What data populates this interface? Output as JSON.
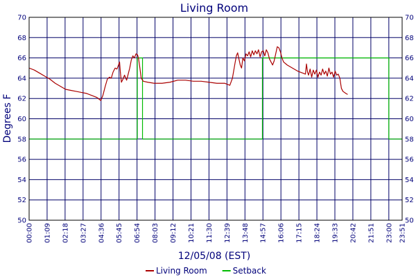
{
  "chart_data": {
    "type": "line",
    "title": "Living Room",
    "xlabel": "12/05/08 (EST)",
    "ylabel": "Degrees F",
    "ylim": [
      50,
      70
    ],
    "yticks": [
      50,
      52,
      54,
      56,
      58,
      60,
      62,
      64,
      66,
      68,
      70
    ],
    "right_axis": true,
    "grid": true,
    "legend_position": "bottom",
    "x_tick_labels": [
      "00:00",
      "01:09",
      "02:18",
      "03:27",
      "04:36",
      "05:45",
      "06:54",
      "08:03",
      "09:12",
      "10:21",
      "11:30",
      "12:39",
      "13:48",
      "14:57",
      "16:06",
      "17:15",
      "18:24",
      "19:33",
      "20:42",
      "21:51",
      "23:00",
      "23:51"
    ],
    "x_tick_minutes": [
      0,
      69,
      138,
      207,
      276,
      345,
      414,
      483,
      552,
      621,
      690,
      759,
      828,
      897,
      966,
      1035,
      1104,
      1173,
      1242,
      1311,
      1380,
      1431
    ],
    "xlim_minutes": [
      0,
      1431
    ],
    "series": [
      {
        "name": "Living Room",
        "color": "#aa0000",
        "points": [
          [
            0,
            65.0
          ],
          [
            20,
            64.8
          ],
          [
            40,
            64.5
          ],
          [
            60,
            64.2
          ],
          [
            80,
            63.9
          ],
          [
            100,
            63.5
          ],
          [
            120,
            63.2
          ],
          [
            140,
            62.9
          ],
          [
            160,
            62.8
          ],
          [
            180,
            62.7
          ],
          [
            200,
            62.6
          ],
          [
            220,
            62.5
          ],
          [
            240,
            62.3
          ],
          [
            260,
            62.1
          ],
          [
            275,
            61.8
          ],
          [
            283,
            62.3
          ],
          [
            292,
            63.2
          ],
          [
            300,
            63.9
          ],
          [
            308,
            64.1
          ],
          [
            315,
            64.0
          ],
          [
            322,
            64.6
          ],
          [
            330,
            65.0
          ],
          [
            337,
            64.9
          ],
          [
            343,
            65.3
          ],
          [
            347,
            65.6
          ],
          [
            350,
            64.6
          ],
          [
            354,
            63.6
          ],
          [
            360,
            63.9
          ],
          [
            366,
            64.3
          ],
          [
            374,
            63.8
          ],
          [
            380,
            64.4
          ],
          [
            386,
            65.0
          ],
          [
            392,
            65.8
          ],
          [
            398,
            66.2
          ],
          [
            404,
            66.0
          ],
          [
            410,
            66.4
          ],
          [
            416,
            66.3
          ],
          [
            420,
            65.9
          ],
          [
            425,
            65.0
          ],
          [
            430,
            64.0
          ],
          [
            438,
            63.7
          ],
          [
            455,
            63.6
          ],
          [
            480,
            63.5
          ],
          [
            510,
            63.5
          ],
          [
            540,
            63.6
          ],
          [
            570,
            63.8
          ],
          [
            600,
            63.8
          ],
          [
            630,
            63.7
          ],
          [
            660,
            63.7
          ],
          [
            690,
            63.6
          ],
          [
            720,
            63.5
          ],
          [
            750,
            63.5
          ],
          [
            770,
            63.3
          ],
          [
            780,
            64.0
          ],
          [
            786,
            64.9
          ],
          [
            790,
            65.5
          ],
          [
            795,
            66.2
          ],
          [
            800,
            66.5
          ],
          [
            804,
            66.0
          ],
          [
            810,
            65.3
          ],
          [
            815,
            65.0
          ],
          [
            820,
            66.0
          ],
          [
            826,
            65.7
          ],
          [
            832,
            66.4
          ],
          [
            838,
            66.2
          ],
          [
            844,
            66.6
          ],
          [
            850,
            66.1
          ],
          [
            856,
            66.7
          ],
          [
            862,
            66.3
          ],
          [
            868,
            66.7
          ],
          [
            874,
            66.4
          ],
          [
            880,
            66.8
          ],
          [
            886,
            66.1
          ],
          [
            892,
            66.6
          ],
          [
            898,
            66.7
          ],
          [
            904,
            66.2
          ],
          [
            910,
            66.8
          ],
          [
            916,
            66.5
          ],
          [
            922,
            65.9
          ],
          [
            928,
            65.6
          ],
          [
            934,
            65.3
          ],
          [
            940,
            65.7
          ],
          [
            946,
            66.4
          ],
          [
            952,
            67.1
          ],
          [
            958,
            67.0
          ],
          [
            964,
            66.6
          ],
          [
            970,
            66.0
          ],
          [
            976,
            65.6
          ],
          [
            990,
            65.3
          ],
          [
            1010,
            65.0
          ],
          [
            1030,
            64.7
          ],
          [
            1050,
            64.5
          ],
          [
            1060,
            64.4
          ],
          [
            1064,
            65.4
          ],
          [
            1068,
            64.6
          ],
          [
            1072,
            64.3
          ],
          [
            1078,
            64.9
          ],
          [
            1084,
            64.1
          ],
          [
            1090,
            64.8
          ],
          [
            1096,
            64.4
          ],
          [
            1102,
            64.8
          ],
          [
            1108,
            64.1
          ],
          [
            1114,
            64.6
          ],
          [
            1120,
            64.3
          ],
          [
            1126,
            64.9
          ],
          [
            1132,
            64.4
          ],
          [
            1138,
            64.7
          ],
          [
            1144,
            64.2
          ],
          [
            1150,
            65.0
          ],
          [
            1156,
            64.4
          ],
          [
            1162,
            64.6
          ],
          [
            1168,
            64.1
          ],
          [
            1174,
            64.7
          ],
          [
            1180,
            64.3
          ],
          [
            1186,
            64.4
          ],
          [
            1192,
            64.0
          ],
          [
            1198,
            63.0
          ],
          [
            1204,
            62.7
          ],
          [
            1215,
            62.5
          ],
          [
            1222,
            62.4
          ]
        ]
      },
      {
        "name": "Setback",
        "color": "#00bb00",
        "points": [
          [
            0,
            58
          ],
          [
            415,
            58
          ],
          [
            415,
            66
          ],
          [
            435,
            66
          ],
          [
            435,
            58
          ],
          [
            895,
            58
          ],
          [
            895,
            66
          ],
          [
            1380,
            66
          ],
          [
            1380,
            58
          ],
          [
            1431,
            58
          ]
        ]
      }
    ]
  }
}
